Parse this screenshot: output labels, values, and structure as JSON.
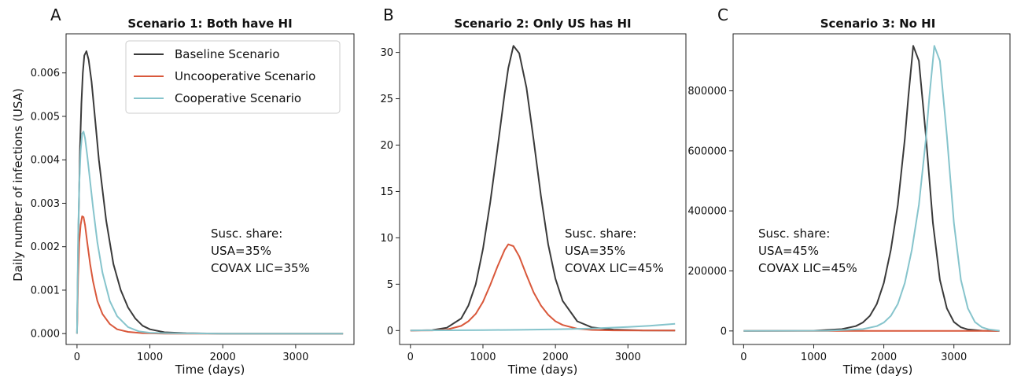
{
  "colors": {
    "baseline": "#3a3a3a",
    "uncooperative": "#d9583b",
    "cooperative": "#86c4cc"
  },
  "legend": [
    {
      "key": "baseline",
      "label": "Baseline Scenario"
    },
    {
      "key": "uncooperative",
      "label": "Uncooperative Scenario"
    },
    {
      "key": "cooperative",
      "label": "Cooperative Scenario"
    }
  ],
  "shared_ylabel": "Daily number of infections (USA)",
  "chart_data": [
    {
      "type": "line",
      "panel": "A",
      "title": "Scenario 1: Both have HI",
      "xlabel": "Time (days)",
      "ylabel": "Daily number of infections (USA)",
      "xlim": [
        -150,
        3800
      ],
      "ylim": [
        -0.00025,
        0.0069
      ],
      "xticks": [
        0,
        1000,
        2000,
        3000
      ],
      "xtick_labels": [
        "0",
        "1000",
        "2000",
        "3000"
      ],
      "yticks": [
        0,
        0.001,
        0.002,
        0.003,
        0.004,
        0.005,
        0.006
      ],
      "ytick_labels": [
        "0.000",
        "0.001",
        "0.002",
        "0.003",
        "0.004",
        "0.005",
        "0.006"
      ],
      "annotation": [
        "Susc. share:",
        "USA=35%",
        "COVAX LIC=35%"
      ],
      "legend_position": "top-right",
      "series": [
        {
          "key": "baseline",
          "name": "Baseline Scenario",
          "x": [
            0,
            20,
            40,
            60,
            80,
            100,
            130,
            160,
            200,
            250,
            300,
            400,
            500,
            600,
            700,
            800,
            900,
            1000,
            1200,
            1500,
            2000,
            3000,
            3650
          ],
          "y": [
            0,
            0.0025,
            0.0042,
            0.0053,
            0.006,
            0.0064,
            0.0065,
            0.0063,
            0.0058,
            0.0049,
            0.004,
            0.0026,
            0.0016,
            0.001,
            0.0006,
            0.00035,
            0.00018,
            0.0001,
            3e-05,
            1e-05,
            0,
            0,
            0
          ]
        },
        {
          "key": "uncooperative",
          "name": "Uncooperative Scenario",
          "x": [
            0,
            15,
            30,
            50,
            70,
            90,
            110,
            140,
            180,
            220,
            280,
            350,
            450,
            550,
            700,
            900,
            1200,
            2000,
            3650
          ],
          "y": [
            0,
            0.0013,
            0.0021,
            0.0025,
            0.0027,
            0.00268,
            0.0025,
            0.0021,
            0.0016,
            0.0012,
            0.00075,
            0.00045,
            0.00022,
            0.0001,
            4e-05,
            1e-05,
            0,
            0,
            0
          ]
        },
        {
          "key": "cooperative",
          "name": "Cooperative Scenario",
          "x": [
            0,
            15,
            30,
            50,
            70,
            90,
            110,
            140,
            180,
            220,
            280,
            350,
            450,
            550,
            700,
            850,
            1000,
            1200,
            2000,
            3650
          ],
          "y": [
            0,
            0.0022,
            0.0034,
            0.0042,
            0.0046,
            0.00465,
            0.0045,
            0.0041,
            0.0035,
            0.0029,
            0.0021,
            0.0014,
            0.00075,
            0.0004,
            0.00015,
            5e-05,
            2e-05,
            1e-05,
            0,
            0
          ]
        }
      ]
    },
    {
      "type": "line",
      "panel": "B",
      "title": "Scenario 2: Only US has HI",
      "xlabel": "Time (days)",
      "xlim": [
        -150,
        3800
      ],
      "ylim": [
        -1.5,
        32
      ],
      "xticks": [
        0,
        1000,
        2000,
        3000
      ],
      "xtick_labels": [
        "0",
        "1000",
        "2000",
        "3000"
      ],
      "yticks": [
        0,
        5,
        10,
        15,
        20,
        25,
        30
      ],
      "ytick_labels": [
        "0",
        "5",
        "10",
        "15",
        "20",
        "25",
        "30"
      ],
      "annotation": [
        "Susc. share:",
        "USA=35%",
        "COVAX LIC=45%"
      ],
      "series": [
        {
          "key": "baseline",
          "name": "Baseline Scenario",
          "x": [
            0,
            300,
            500,
            700,
            800,
            900,
            1000,
            1100,
            1200,
            1300,
            1350,
            1420,
            1500,
            1600,
            1700,
            1800,
            1900,
            2000,
            2100,
            2300,
            2500,
            2800,
            3200,
            3650
          ],
          "y": [
            0,
            0.05,
            0.3,
            1.3,
            2.7,
            5.0,
            8.8,
            13.8,
            19.6,
            25.6,
            28.3,
            30.7,
            29.9,
            26.2,
            20.5,
            14.5,
            9.3,
            5.6,
            3.2,
            1.0,
            0.35,
            0.1,
            0.02,
            0
          ]
        },
        {
          "key": "uncooperative",
          "name": "Uncooperative Scenario",
          "x": [
            0,
            300,
            500,
            700,
            800,
            900,
            1000,
            1100,
            1200,
            1300,
            1350,
            1420,
            1500,
            1600,
            1700,
            1800,
            1900,
            2000,
            2100,
            2300,
            2500,
            2800,
            3200,
            3650
          ],
          "y": [
            0,
            0.02,
            0.1,
            0.5,
            1.0,
            1.8,
            3.1,
            4.9,
            6.9,
            8.7,
            9.3,
            9.1,
            8.0,
            6.0,
            4.1,
            2.7,
            1.7,
            1.0,
            0.6,
            0.2,
            0.07,
            0.02,
            0,
            0
          ]
        },
        {
          "key": "cooperative",
          "name": "Cooperative Scenario",
          "x": [
            0,
            500,
            1000,
            1500,
            2000,
            2500,
            3000,
            3300,
            3650
          ],
          "y": [
            0.02,
            0.03,
            0.05,
            0.08,
            0.13,
            0.22,
            0.38,
            0.52,
            0.72
          ]
        }
      ]
    },
    {
      "type": "line",
      "panel": "C",
      "title": "Scenario 3: No HI",
      "xlabel": "Time (days)",
      "xlim": [
        -150,
        3800
      ],
      "ylim": [
        -45000,
        990000
      ],
      "xticks": [
        0,
        1000,
        2000,
        3000
      ],
      "xtick_labels": [
        "0",
        "1000",
        "2000",
        "3000"
      ],
      "yticks": [
        0,
        200000,
        400000,
        600000,
        800000
      ],
      "ytick_labels": [
        "0",
        "200000",
        "400000",
        "600000",
        "800000"
      ],
      "annotation": [
        "Susc. share:",
        "USA=45%",
        "COVAX LIC=45%"
      ],
      "series": [
        {
          "key": "baseline",
          "name": "Baseline Scenario",
          "x": [
            0,
            1000,
            1400,
            1600,
            1700,
            1800,
            1900,
            2000,
            2100,
            2200,
            2300,
            2350,
            2420,
            2500,
            2600,
            2700,
            2800,
            2900,
            3000,
            3100,
            3200,
            3400,
            3650
          ],
          "y": [
            0,
            800,
            6000,
            16000,
            28000,
            50000,
            90000,
            160000,
            270000,
            420000,
            640000,
            780000,
            950000,
            900000,
            650000,
            360000,
            170000,
            75000,
            30000,
            12000,
            5000,
            800,
            0
          ]
        },
        {
          "key": "uncooperative",
          "name": "Uncooperative Scenario",
          "x": [
            0,
            3650
          ],
          "y": [
            0,
            0
          ]
        },
        {
          "key": "cooperative",
          "name": "Cooperative Scenario",
          "x": [
            0,
            1200,
            1700,
            1900,
            2000,
            2100,
            2200,
            2300,
            2400,
            2500,
            2600,
            2650,
            2720,
            2800,
            2900,
            3000,
            3100,
            3200,
            3300,
            3400,
            3500,
            3650
          ],
          "y": [
            0,
            800,
            6000,
            16000,
            28000,
            50000,
            90000,
            160000,
            270000,
            420000,
            640000,
            780000,
            950000,
            900000,
            650000,
            360000,
            170000,
            75000,
            30000,
            12000,
            5000,
            800
          ]
        }
      ]
    }
  ]
}
